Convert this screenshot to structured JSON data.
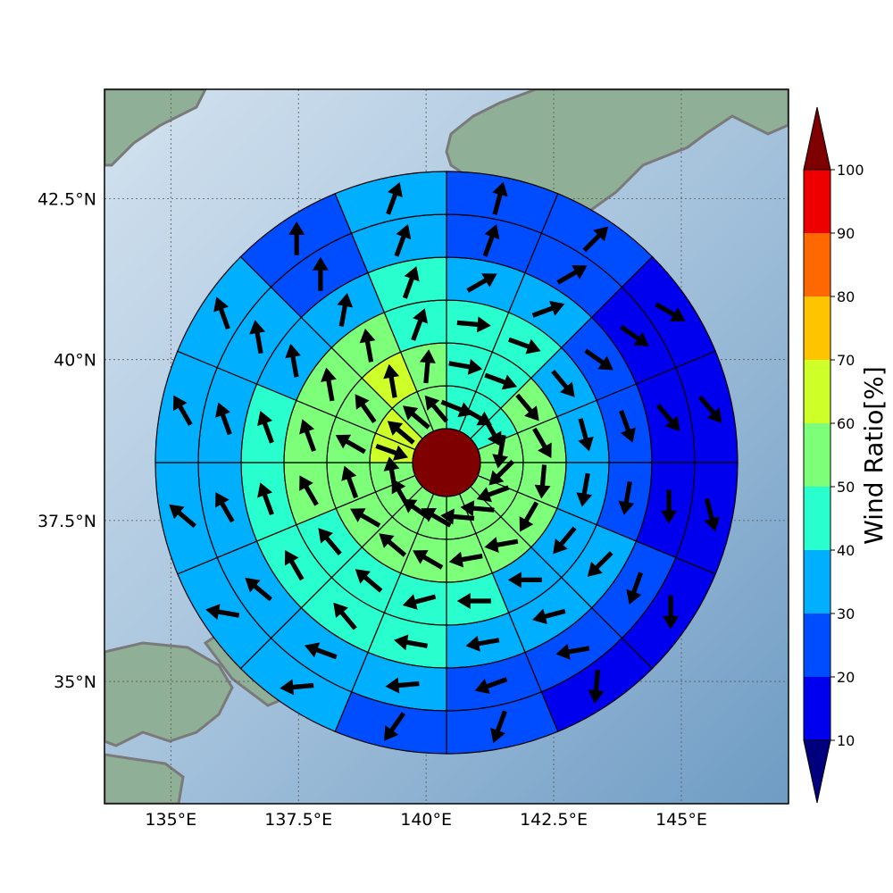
{
  "map": {
    "lon_ticks": [
      "135°E",
      "137.5°E",
      "140°E",
      "142.5°E",
      "145°E"
    ],
    "lat_ticks": [
      "42.5°N",
      "40°N",
      "37.5°N",
      "35°N"
    ],
    "lon_values": [
      135,
      137.5,
      140,
      142.5,
      145
    ],
    "lat_values": [
      42.5,
      40,
      37.5,
      35
    ],
    "extent": {
      "lon": [
        133.7,
        147.1
      ],
      "lat": [
        33.1,
        44.2
      ]
    },
    "background": {
      "sea": "#a9c6dd",
      "land": "#8faf96",
      "coast": "#7a7a7a"
    }
  },
  "chart_data": {
    "type": "polar-sector-map",
    "center": {
      "lon": 140.4,
      "lat": 38.4
    },
    "ring_count": 6,
    "sector_count": 16,
    "center_cell": {
      "value": 100,
      "color": "#7f0000"
    },
    "cells": [
      [
        45,
        45,
        45,
        55,
        55,
        55,
        55,
        55,
        55,
        55,
        55,
        55,
        65,
        65,
        55,
        55
      ],
      [
        45,
        45,
        55,
        55,
        55,
        55,
        55,
        55,
        55,
        55,
        55,
        55,
        55,
        55,
        65,
        55
      ],
      [
        45,
        45,
        35,
        35,
        35,
        35,
        35,
        45,
        45,
        45,
        45,
        55,
        55,
        55,
        55,
        45
      ],
      [
        35,
        35,
        25,
        25,
        25,
        35,
        35,
        35,
        45,
        45,
        45,
        45,
        45,
        35,
        35,
        45
      ],
      [
        25,
        25,
        15,
        15,
        15,
        25,
        25,
        25,
        35,
        35,
        35,
        35,
        35,
        35,
        25,
        35
      ],
      [
        25,
        25,
        15,
        15,
        15,
        15,
        15,
        25,
        25,
        35,
        35,
        35,
        35,
        35,
        25,
        35
      ]
    ],
    "arrows": [
      [
        112,
        120,
        150,
        190,
        225,
        250,
        275,
        275,
        300,
        305,
        330,
        350,
        110,
        310,
        310,
        320
      ],
      [
        100,
        110,
        140,
        150,
        185,
        210,
        260,
        260,
        300,
        310,
        300,
        340,
        300,
        325,
        350,
        5
      ],
      [
        95,
        110,
        140,
        165,
        190,
        220,
        270,
        270,
        255,
        310,
        320,
        330,
        340,
        350,
        350,
        20
      ],
      [
        60,
        70,
        125,
        160,
        190,
        225,
        255,
        260,
        280,
        320,
        330,
        340,
        340,
        350,
        10,
        20
      ],
      [
        20,
        60,
        125,
        140,
        180,
        200,
        260,
        250,
        265,
        290,
        310,
        330,
        340,
        350,
        0,
        20
      ],
      [
        15,
        45,
        120,
        140,
        165,
        180,
        185,
        200,
        215,
        265,
        280,
        310,
        330,
        340,
        0,
        20
      ]
    ],
    "colorbar": {
      "label": "Wind Ratio[%]",
      "ticks": [
        "10",
        "20",
        "30",
        "40",
        "50",
        "60",
        "70",
        "80",
        "90",
        "100"
      ],
      "levels": [
        10,
        20,
        30,
        40,
        50,
        60,
        70,
        80,
        90,
        100
      ],
      "under_color": "#00007f",
      "over_color": "#7f0000",
      "colors": [
        "#0000ee",
        "#004cff",
        "#00b0ff",
        "#29ffce",
        "#7dff7a",
        "#ceff29",
        "#ffc400",
        "#ff6800",
        "#ee0000"
      ]
    }
  }
}
